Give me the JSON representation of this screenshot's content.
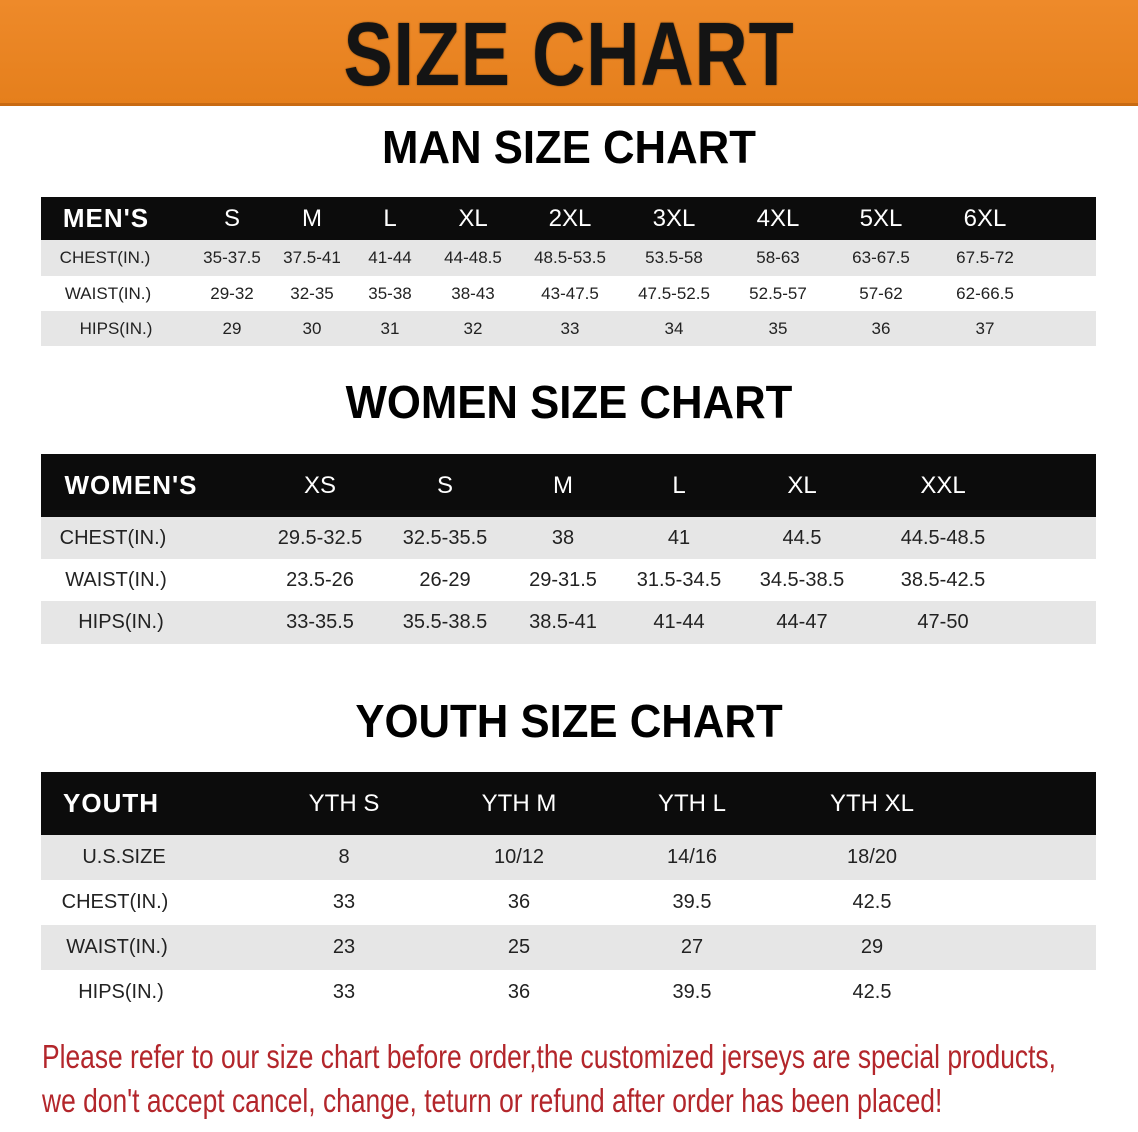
{
  "banner_title": "SIZE CHART",
  "men": {
    "title": "MAN SIZE CHART",
    "header": [
      "MEN'S",
      "S",
      "M",
      "L",
      "XL",
      "2XL",
      "3XL",
      "4XL",
      "5XL",
      "6XL"
    ],
    "rows": [
      [
        "CHEST(IN.)",
        "35-37.5",
        "37.5-41",
        "41-44",
        "44-48.5",
        "48.5-53.5",
        "53.5-58",
        "58-63",
        "63-67.5",
        "67.5-72"
      ],
      [
        "WAIST(IN.)",
        "29-32",
        "32-35",
        "35-38",
        "38-43",
        "43-47.5",
        "47.5-52.5",
        "52.5-57",
        "57-62",
        "62-66.5"
      ],
      [
        "HIPS(IN.)",
        "29",
        "30",
        "31",
        "32",
        "33",
        "34",
        "35",
        "36",
        "37"
      ]
    ]
  },
  "women": {
    "title": "WOMEN SIZE CHART",
    "header": [
      "WOMEN'S",
      "XS",
      "S",
      "M",
      "L",
      "XL",
      "XXL"
    ],
    "rows": [
      [
        "CHEST(IN.)",
        "29.5-32.5",
        "32.5-35.5",
        "38",
        "41",
        "44.5",
        "44.5-48.5"
      ],
      [
        "WAIST(IN.)",
        "23.5-26",
        "26-29",
        "29-31.5",
        "31.5-34.5",
        "34.5-38.5",
        "38.5-42.5"
      ],
      [
        "HIPS(IN.)",
        "33-35.5",
        "35.5-38.5",
        "38.5-41",
        "41-44",
        "44-47",
        "47-50"
      ]
    ]
  },
  "youth": {
    "title": "YOUTH SIZE CHART",
    "header": [
      "YOUTH",
      "YTH S",
      "YTH M",
      "YTH L",
      "YTH XL"
    ],
    "rows": [
      [
        "U.S.SIZE",
        "8",
        "10/12",
        "14/16",
        "18/20"
      ],
      [
        "CHEST(IN.)",
        "33",
        "36",
        "39.5",
        "42.5"
      ],
      [
        "WAIST(IN.)",
        "23",
        "25",
        "27",
        "29"
      ],
      [
        "HIPS(IN.)",
        "33",
        "36",
        "39.5",
        "42.5"
      ]
    ]
  },
  "footer": {
    "line1": "Please refer to our size chart before order,the customized jerseys are special products,",
    "line2": "we don't accept cancel, change, teturn or refund after order has been placed!"
  },
  "colors": {
    "banner": "#e9841f",
    "header_row": "#0c0c0c",
    "stripe": "#e6e6e6",
    "footer_text": "#b3262b"
  }
}
